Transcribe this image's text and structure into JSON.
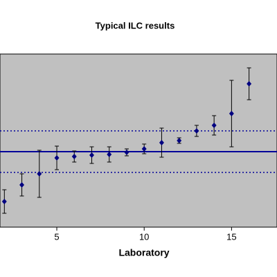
{
  "chart_data": {
    "type": "errorbar",
    "title": "Typical ILC results",
    "x_label": "Laboratory",
    "x": [
      2,
      3,
      4,
      5,
      6,
      7,
      8,
      9,
      10,
      11,
      12,
      13,
      14,
      15,
      16
    ],
    "values": [
      14.8,
      24.4,
      30.8,
      40,
      40.8,
      41.6,
      42,
      43.2,
      45.2,
      48.8,
      50,
      55.6,
      58.8,
      65.6,
      82.8
    ],
    "errors": [
      6.8,
      6.4,
      13.6,
      6.8,
      3.2,
      4.8,
      4.4,
      2,
      2.8,
      8.4,
      1.6,
      3.2,
      5.6,
      19.2,
      9.2
    ],
    "color": "#000080",
    "error_color": "#000000",
    "mean": 43.6,
    "limits": [
      31.6,
      55.6
    ],
    "line_color": "#000099",
    "xlim": [
      1.75,
      17.6
    ],
    "xticks": [
      5,
      10,
      15
    ],
    "ylim": [
      0,
      100
    ],
    "plot_background": "#c0c0c0"
  }
}
